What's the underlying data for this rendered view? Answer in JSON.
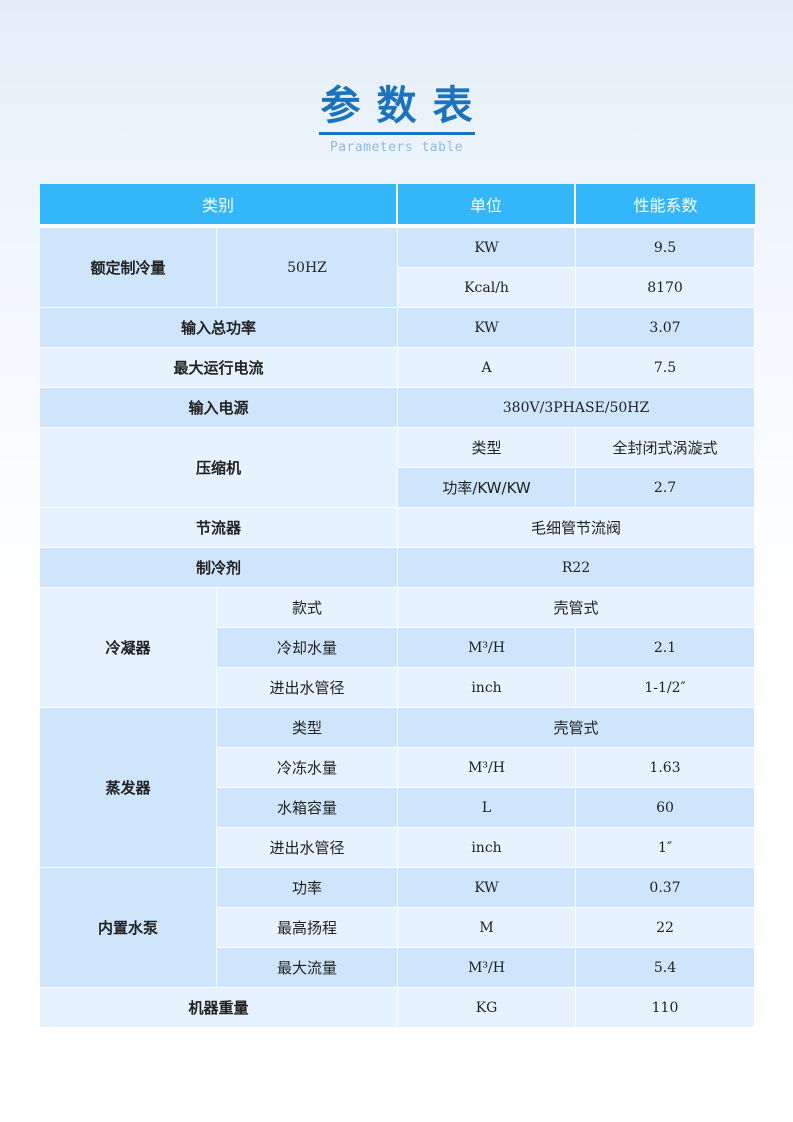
{
  "title": "参数表",
  "subtitle": "Parameters table",
  "colors": {
    "header": "#33b6fa",
    "row_dark": "#cfe5fb",
    "row_light": "#e6f2fd",
    "title": "#1b72bd"
  },
  "headers": [
    {
      "label": "类别",
      "colspan": 2
    },
    {
      "label": "单位",
      "colspan": 1
    },
    {
      "label": "性能系数",
      "colspan": 1
    }
  ],
  "rows": [
    [
      {
        "text": "额定制冷量",
        "rowspan": 2,
        "bold": true
      },
      {
        "text": "50HZ",
        "rowspan": 2
      },
      {
        "text": "KW"
      },
      {
        "text": "9.5"
      }
    ],
    [
      {
        "text": "Kcal/h"
      },
      {
        "text": "8170"
      }
    ],
    [
      {
        "text": "输入总功率",
        "colspan": 2,
        "bold": true
      },
      {
        "text": "KW"
      },
      {
        "text": "3.07"
      }
    ],
    [
      {
        "text": "最大运行电流",
        "colspan": 2,
        "bold": true
      },
      {
        "text": "A"
      },
      {
        "text": "7.5"
      }
    ],
    [
      {
        "text": "输入电源",
        "colspan": 2,
        "bold": true
      },
      {
        "text": "380V/3PHASE/50HZ",
        "colspan": 2
      }
    ],
    [
      {
        "text": "压缩机",
        "colspan": 2,
        "rowspan": 2,
        "bold": true
      },
      {
        "text": "类型",
        "cn": true
      },
      {
        "text": "全封闭式涡漩式",
        "cn": true
      }
    ],
    [
      {
        "text": "功率/KW/KW",
        "cn": true
      },
      {
        "text": "2.7"
      }
    ],
    [
      {
        "text": "节流器",
        "colspan": 2,
        "bold": true
      },
      {
        "text": "毛细管节流阀",
        "colspan": 2,
        "cn": true
      }
    ],
    [
      {
        "text": "制冷剂",
        "colspan": 2,
        "bold": true
      },
      {
        "text": "R22",
        "colspan": 2
      }
    ],
    [
      {
        "text": "冷凝器",
        "rowspan": 3,
        "bold": true
      },
      {
        "text": "款式",
        "cn": true
      },
      {
        "text": "壳管式",
        "colspan": 2,
        "cn": true
      }
    ],
    [
      {
        "text": "冷却水量",
        "cn": true
      },
      {
        "text": "M³/H"
      },
      {
        "text": "2.1"
      }
    ],
    [
      {
        "text": "进出水管径",
        "cn": true
      },
      {
        "text": "inch"
      },
      {
        "text": "1-1/2″"
      }
    ],
    [
      {
        "text": "蒸发器",
        "rowspan": 4,
        "bold": true
      },
      {
        "text": "类型",
        "cn": true
      },
      {
        "text": "壳管式",
        "colspan": 2,
        "cn": true
      }
    ],
    [
      {
        "text": "冷冻水量",
        "cn": true
      },
      {
        "text": "M³/H"
      },
      {
        "text": "1.63"
      }
    ],
    [
      {
        "text": "水箱容量",
        "cn": true
      },
      {
        "text": "L"
      },
      {
        "text": "60"
      }
    ],
    [
      {
        "text": "进出水管径",
        "cn": true
      },
      {
        "text": "inch"
      },
      {
        "text": "1″"
      }
    ],
    [
      {
        "text": "内置水泵",
        "rowspan": 3,
        "bold": true
      },
      {
        "text": "功率",
        "cn": true
      },
      {
        "text": "KW"
      },
      {
        "text": "0.37"
      }
    ],
    [
      {
        "text": "最高扬程",
        "cn": true
      },
      {
        "text": "M"
      },
      {
        "text": "22"
      }
    ],
    [
      {
        "text": "最大流量",
        "cn": true
      },
      {
        "text": "M³/H"
      },
      {
        "text": "5.4"
      }
    ],
    [
      {
        "text": "机器重量",
        "colspan": 2,
        "bold": true
      },
      {
        "text": "KG"
      },
      {
        "text": "110"
      }
    ]
  ]
}
